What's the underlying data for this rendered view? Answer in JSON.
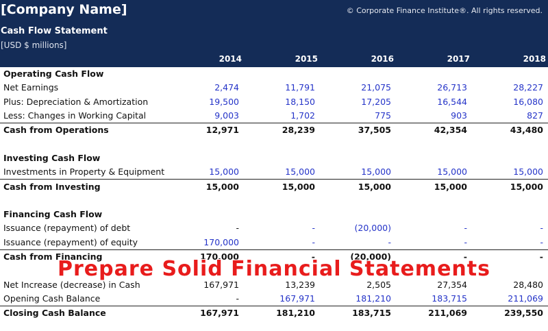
{
  "header": {
    "company": "[Company Name]",
    "copyright": "© Corporate Finance Institute®. All rights reserved.",
    "title": "Cash Flow Statement",
    "units": "[USD $ millions]",
    "years": [
      "2014",
      "2015",
      "2016",
      "2017",
      "2018"
    ]
  },
  "rows": {
    "operating_header": "Operating Cash Flow",
    "net_earnings": {
      "label": "Net Earnings",
      "values": [
        "2,474",
        "11,791",
        "21,075",
        "26,713",
        "28,227"
      ]
    },
    "depreciation": {
      "label": "Plus: Depreciation & Amortization",
      "values": [
        "19,500",
        "18,150",
        "17,205",
        "16,544",
        "16,080"
      ]
    },
    "working_capital": {
      "label": "Less: Changes in Working Capital",
      "values": [
        "9,003",
        "1,702",
        "775",
        "903",
        "827"
      ]
    },
    "cash_operations": {
      "label": "Cash from Operations",
      "values": [
        "12,971",
        "28,239",
        "37,505",
        "42,354",
        "43,480"
      ]
    },
    "investing_header": "Investing Cash Flow",
    "investments": {
      "label": "Investments in Property & Equipment",
      "values": [
        "15,000",
        "15,000",
        "15,000",
        "15,000",
        "15,000"
      ]
    },
    "cash_investing": {
      "label": "Cash from Investing",
      "values": [
        "15,000",
        "15,000",
        "15,000",
        "15,000",
        "15,000"
      ]
    },
    "financing_header": "Financing Cash Flow",
    "debt": {
      "label": "Issuance (repayment) of debt",
      "values": [
        "-",
        "-",
        "(20,000)",
        "-",
        "-"
      ]
    },
    "equity": {
      "label": "Issuance (repayment) of equity",
      "values": [
        "170,000",
        "-",
        "-",
        "-",
        "-"
      ]
    },
    "cash_financing": {
      "label": "Cash from Financing",
      "values": [
        "170,000",
        "-",
        "(20,000)",
        "-",
        "-"
      ]
    },
    "net_increase": {
      "label": "Net Increase (decrease) in Cash",
      "values": [
        "167,971",
        "13,239",
        "2,505",
        "27,354",
        "28,480"
      ]
    },
    "opening": {
      "label": "Opening Cash Balance",
      "values": [
        "-",
        "167,971",
        "181,210",
        "183,715",
        "211,069"
      ]
    },
    "closing": {
      "label": "Closing Cash Balance",
      "values": [
        "167,971",
        "181,210",
        "183,715",
        "211,069",
        "239,550"
      ]
    }
  },
  "overlay_text": "Prepare Solid Financial Statements",
  "colors": {
    "header_bg": "#142c57",
    "input_blue": "#2433c8",
    "overlay_red": "#e81c1c"
  }
}
